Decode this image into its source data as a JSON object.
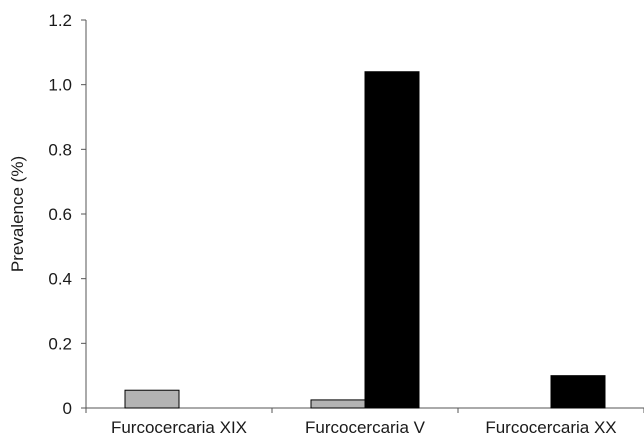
{
  "chart_data": {
    "type": "bar",
    "title": "",
    "xlabel": "",
    "ylabel": "Prevalence (%)",
    "ylim": [
      0,
      1.2
    ],
    "yticks": [
      "0",
      "0.2",
      "0.4",
      "0.6",
      "0.8",
      "1.0",
      "1.2"
    ],
    "categories": [
      "Furcocercaria XIX",
      "Furcocercaria V",
      "Furcocercaria XX"
    ],
    "series": [
      {
        "values": [
          0.055,
          0.025,
          0
        ],
        "color": "#b3b3b3"
      },
      {
        "values": [
          0,
          1.04,
          0.1
        ],
        "color": "#000000"
      }
    ],
    "grid": false,
    "legend": "none"
  }
}
